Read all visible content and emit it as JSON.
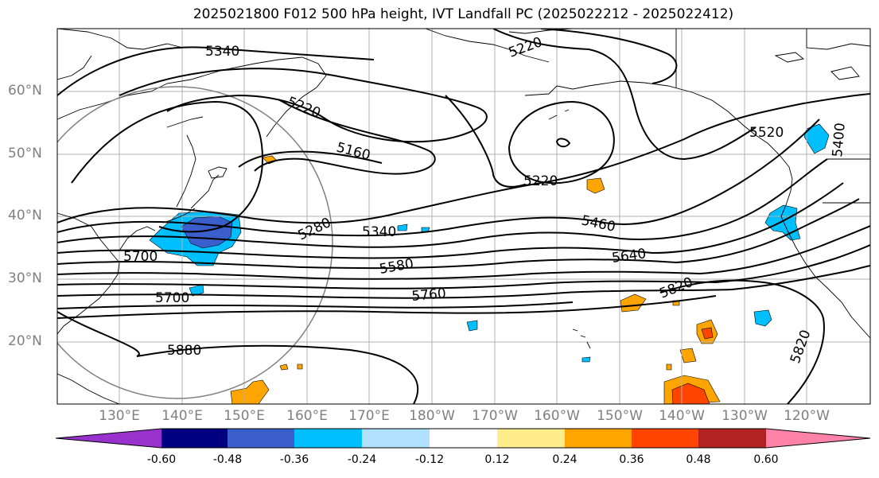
{
  "title": "2025021800 F012 500 hPa height, IVT Landfall PC (2025022212 - 2025022412)",
  "lat_ticks": [
    "60°N",
    "50°N",
    "40°N",
    "30°N",
    "20°N"
  ],
  "lon_ticks": [
    "130°E",
    "140°E",
    "150°E",
    "160°E",
    "170°E",
    "180°W",
    "170°W",
    "160°W",
    "150°W",
    "140°W",
    "130°W",
    "120°W"
  ],
  "contour_labels": [
    "5340",
    "5220",
    "5220",
    "5160",
    "5220",
    "5520",
    "5400",
    "5280",
    "5340",
    "5460",
    "5700",
    "5580",
    "5640",
    "5700",
    "5760",
    "5820",
    "5880",
    "5820"
  ],
  "colorbar": {
    "labels": [
      "-0.60",
      "-0.48",
      "-0.36",
      "-0.24",
      "-0.12",
      "0.12",
      "0.24",
      "0.36",
      "0.48",
      "0.60"
    ],
    "colors": [
      "#9932cc",
      "#000080",
      "#3a5fcd",
      "#00bfff",
      "#b0e2ff",
      "#ffffff",
      "#ffec8b",
      "#ffa500",
      "#ff4500",
      "#b22222",
      "#ff83a8"
    ]
  }
}
